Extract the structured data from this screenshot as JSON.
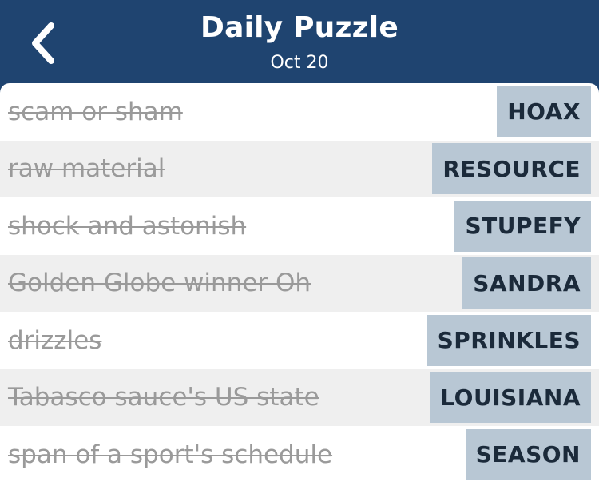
{
  "header": {
    "title": "Daily Puzzle",
    "date": "Oct 20",
    "back_icon": "chevron-left-icon"
  },
  "clues": [
    {
      "clue": "scam or sham",
      "answer": "HOAX"
    },
    {
      "clue": "raw material",
      "answer": "RESOURCE"
    },
    {
      "clue": "shock and astonish",
      "answer": "STUPEFY"
    },
    {
      "clue": "Golden Globe winner Oh",
      "answer": "SANDRA"
    },
    {
      "clue": "drizzles",
      "answer": "SPRINKLES"
    },
    {
      "clue": "Tabasco sauce's US state",
      "answer": "LOUISIANA"
    },
    {
      "clue": "span of a sport's schedule",
      "answer": "SEASON"
    }
  ],
  "colors": {
    "header_bg": "#1f4470",
    "answer_bg": "#b8c7d4",
    "row_alt_bg": "#efefef",
    "clue_text": "#9a9a9a"
  }
}
